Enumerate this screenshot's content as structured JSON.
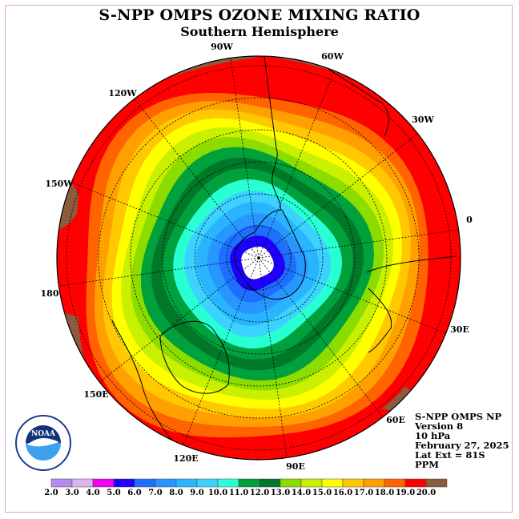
{
  "title": "S-NPP OMPS OZONE MIXING RATIO",
  "subtitle": "Southern Hemisphere",
  "longitude_labels": [
    "90W",
    "60W",
    "30W",
    "0",
    "30E",
    "60E",
    "90E",
    "120E",
    "150E",
    "180",
    "150W",
    "120W"
  ],
  "info": {
    "instrument": "S-NPP OMPS NP",
    "version": "Version 8",
    "level": "10 hPa",
    "date": "February 27, 2025",
    "lat_ext": "Lat Ext = 81S",
    "units": "PPM"
  },
  "logo_text": "NOAA",
  "logo_ring_text": "NATIONAL OCEANIC AND ATMOSPHERIC ADMINISTRATION · U.S. DEPARTMENT OF COMMERCE",
  "colorbar": {
    "labels": [
      "2.0",
      "3.0",
      "4.0",
      "5.0",
      "6.0",
      "7.0",
      "8.0",
      "9.0",
      "10.0",
      "11.0",
      "12.0",
      "13.0",
      "14.0",
      "15.0",
      "16.0",
      "17.0",
      "18.0",
      "19.0",
      "20.0"
    ],
    "colors": [
      "#b48cf0",
      "#dcb4f0",
      "#f000f0",
      "#1e00ff",
      "#1e6eff",
      "#2896ff",
      "#28b4ff",
      "#3cd2ff",
      "#28ffd2",
      "#00a03c",
      "#007828",
      "#8cdc00",
      "#c8f000",
      "#ffff00",
      "#ffc800",
      "#ffa000",
      "#ff6400",
      "#ff0000",
      "#8c5a3c"
    ]
  },
  "ozone_rings_center_to_edge": [
    "#ffffff",
    "#1e00ff",
    "#1e6eff",
    "#2896ff",
    "#28b4ff",
    "#3cd2ff",
    "#28ffd2",
    "#00a03c",
    "#007828",
    "#00a03c",
    "#8cdc00",
    "#c8f000",
    "#ffff00",
    "#ffc800",
    "#ffa000",
    "#ff6400",
    "#ff0000"
  ],
  "outer_color": "#ff0000",
  "high_patch_color": "#8c5a3c"
}
